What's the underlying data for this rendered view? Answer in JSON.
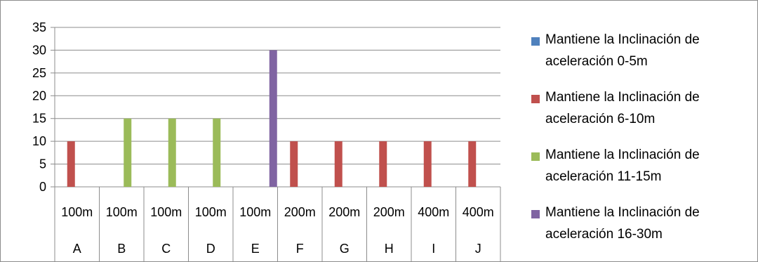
{
  "chart_data": {
    "type": "bar",
    "categories": [
      "A",
      "B",
      "C",
      "D",
      "E",
      "F",
      "G",
      "H",
      "I",
      "J"
    ],
    "distance_labels": [
      "100m",
      "100m",
      "100m",
      "100m",
      "100m",
      "200m",
      "200m",
      "200m",
      "400m",
      "400m"
    ],
    "series": [
      {
        "name": "Mantiene la Inclinación de aceleración 0-5m",
        "color": "#4f81bd",
        "values": [
          0,
          0,
          0,
          0,
          0,
          0,
          0,
          0,
          0,
          0
        ]
      },
      {
        "name": "Mantiene la Inclinación de aceleración 6-10m",
        "color": "#c0504d",
        "values": [
          10,
          0,
          0,
          0,
          0,
          10,
          10,
          10,
          10,
          10
        ]
      },
      {
        "name": "Mantiene la Inclinación de aceleración 11-15m",
        "color": "#9bbb59",
        "values": [
          0,
          15,
          15,
          15,
          0,
          0,
          0,
          0,
          0,
          0
        ]
      },
      {
        "name": "Mantiene la Inclinación de aceleración 16-30m",
        "color": "#8064a2",
        "values": [
          0,
          0,
          0,
          0,
          30,
          0,
          0,
          0,
          0,
          0
        ]
      }
    ],
    "ylim": [
      0,
      35
    ],
    "yticks": [
      0,
      5,
      10,
      15,
      20,
      25,
      30,
      35
    ],
    "grid": true,
    "legend": "right"
  }
}
